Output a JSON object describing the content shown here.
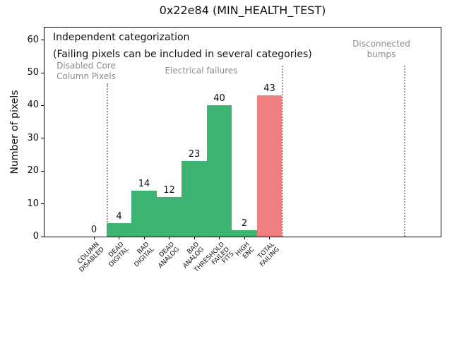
{
  "chart_data": {
    "type": "bar",
    "title": "0x22e84 (MIN_HEALTH_TEST)",
    "ylabel": "Number of pixels",
    "xlabel": "",
    "ylim": [
      0,
      64
    ],
    "yticks": [
      0,
      10,
      20,
      30,
      40,
      50,
      60
    ],
    "grid": false,
    "legend": "none",
    "categories": [
      "COLUMN\nDISABLED",
      "DEAD\nDIGITAL",
      "BAD\nDIGITAL",
      "DEAD\nANALOG",
      "BAD\nANALOG",
      "THRESHOLD\nFAILED\nFITS",
      "HIGH\nENC",
      "TOTAL\nFAILING"
    ],
    "values": [
      0,
      4,
      14,
      12,
      23,
      40,
      2,
      43
    ],
    "value_labels": [
      "0",
      "4",
      "14",
      "12",
      "23",
      "40",
      "2",
      "43"
    ],
    "bar_colors": [
      "#3cb371",
      "#3cb371",
      "#3cb371",
      "#3cb371",
      "#3cb371",
      "#3cb371",
      "#3cb371",
      "#f08080"
    ],
    "annotations": {
      "note_line1": "Independent categorization",
      "note_line2": "(Failing pixels can be included in several categories)",
      "section_labels": [
        {
          "text": "Disabled Core\nColumn Pixels"
        },
        {
          "text": "Electrical failures"
        },
        {
          "text": "Disconnected\nbumps"
        }
      ]
    },
    "colors": {
      "bar_green": "#3cb371",
      "bar_red": "#f08080",
      "section_text": "#8c8c8c",
      "separator": "#999999",
      "axis": "#000000",
      "background": "#ffffff"
    }
  }
}
